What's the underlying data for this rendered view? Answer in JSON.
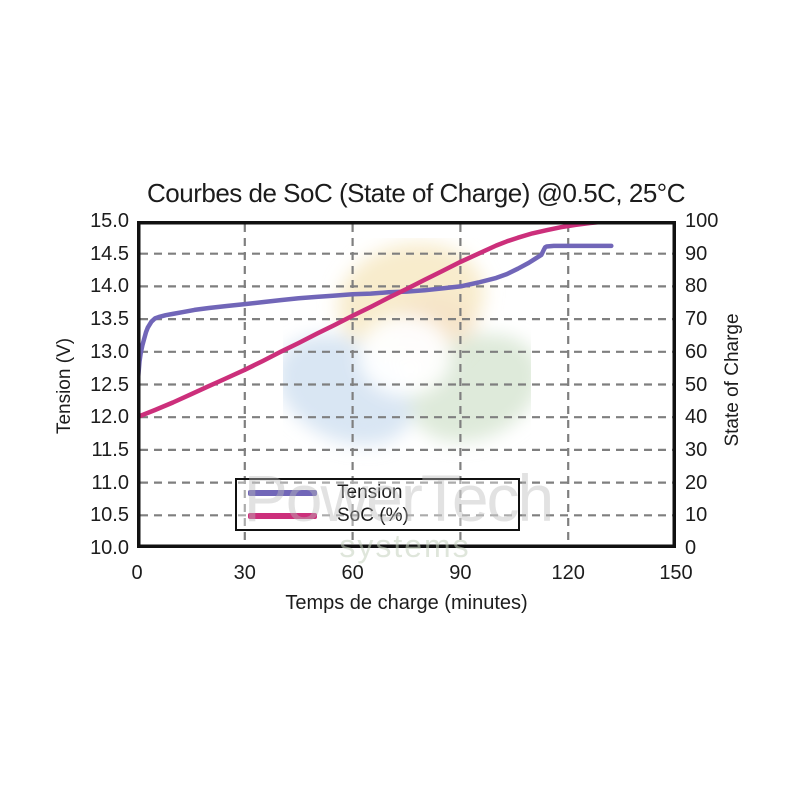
{
  "watermark": {
    "brand": "PowerTech",
    "sub": "systems"
  },
  "chart_data": {
    "type": "line",
    "title": "Courbes de SoC (State of Charge) @0.5C, 25°C",
    "xlabel": "Temps de charge (minutes)",
    "ylabel_left": "Tension (V)",
    "ylabel_right": "State of Charge",
    "xlim": [
      0,
      150
    ],
    "ylim_left": [
      10.0,
      15.0
    ],
    "ylim_right": [
      0,
      100
    ],
    "xticks": [
      "0",
      "30",
      "60",
      "90",
      "120",
      "150"
    ],
    "yticks_left": [
      "15.0",
      "14.5",
      "14.0",
      "13.5",
      "13.0",
      "12.5",
      "12.0",
      "11.5",
      "11.0",
      "10.5",
      "10.0"
    ],
    "yticks_right": [
      "100",
      "90",
      "80",
      "70",
      "60",
      "50",
      "40",
      "30",
      "20",
      "10",
      "0"
    ],
    "grid": "dashed-gray-both-axes",
    "grid_color": "#7f7f7f",
    "axis_border_color": "#111111",
    "legend": {
      "position": "lower-left-inside",
      "entries": [
        {
          "label": "Tension",
          "color": "#7166b8"
        },
        {
          "label": "SoC (%)",
          "color": "#cc2f7b"
        }
      ]
    },
    "series": [
      {
        "name": "Tension",
        "axis": "left",
        "color": "#7166b8",
        "points": [
          [
            0,
            12.45
          ],
          [
            0.3,
            12.6
          ],
          [
            0.7,
            12.85
          ],
          [
            1,
            12.97
          ],
          [
            1.5,
            13.1
          ],
          [
            2,
            13.2
          ],
          [
            2.5,
            13.3
          ],
          [
            3,
            13.37
          ],
          [
            4,
            13.46
          ],
          [
            5,
            13.51
          ],
          [
            6,
            13.53
          ],
          [
            8,
            13.56
          ],
          [
            10,
            13.58
          ],
          [
            13,
            13.61
          ],
          [
            16,
            13.64
          ],
          [
            20,
            13.67
          ],
          [
            25,
            13.7
          ],
          [
            30,
            13.73
          ],
          [
            35,
            13.76
          ],
          [
            40,
            13.79
          ],
          [
            45,
            13.82
          ],
          [
            50,
            13.84
          ],
          [
            55,
            13.86
          ],
          [
            60,
            13.88
          ],
          [
            65,
            13.89
          ],
          [
            70,
            13.91
          ],
          [
            75,
            13.92
          ],
          [
            80,
            13.94
          ],
          [
            85,
            13.97
          ],
          [
            90,
            14.0
          ],
          [
            95,
            14.06
          ],
          [
            100,
            14.13
          ],
          [
            103,
            14.19
          ],
          [
            106,
            14.27
          ],
          [
            109,
            14.36
          ],
          [
            111,
            14.43
          ],
          [
            112.5,
            14.48
          ],
          [
            113.2,
            14.56
          ],
          [
            113.6,
            14.6
          ],
          [
            114,
            14.61
          ],
          [
            116,
            14.62
          ],
          [
            120,
            14.62
          ],
          [
            126,
            14.62
          ],
          [
            132,
            14.62
          ]
        ]
      },
      {
        "name": "SoC (%)",
        "axis": "right",
        "color": "#cc2f7b",
        "points": [
          [
            0,
            40
          ],
          [
            5,
            42.2
          ],
          [
            10,
            44.5
          ],
          [
            15,
            47
          ],
          [
            20,
            49.5
          ],
          [
            25,
            52
          ],
          [
            30,
            54.5
          ],
          [
            35,
            57.2
          ],
          [
            40,
            60
          ],
          [
            45,
            62.7
          ],
          [
            50,
            65.5
          ],
          [
            55,
            68.2
          ],
          [
            60,
            71
          ],
          [
            65,
            73.7
          ],
          [
            70,
            76.5
          ],
          [
            75,
            79.2
          ],
          [
            80,
            82
          ],
          [
            85,
            84.7
          ],
          [
            90,
            87.5
          ],
          [
            95,
            90
          ],
          [
            100,
            92.5
          ],
          [
            103,
            93.8
          ],
          [
            106,
            94.9
          ],
          [
            110,
            96.2
          ],
          [
            114,
            97.2
          ],
          [
            118,
            98.1
          ],
          [
            122,
            98.8
          ],
          [
            126,
            99.4
          ],
          [
            129,
            99.7
          ],
          [
            132,
            100
          ]
        ]
      }
    ]
  }
}
